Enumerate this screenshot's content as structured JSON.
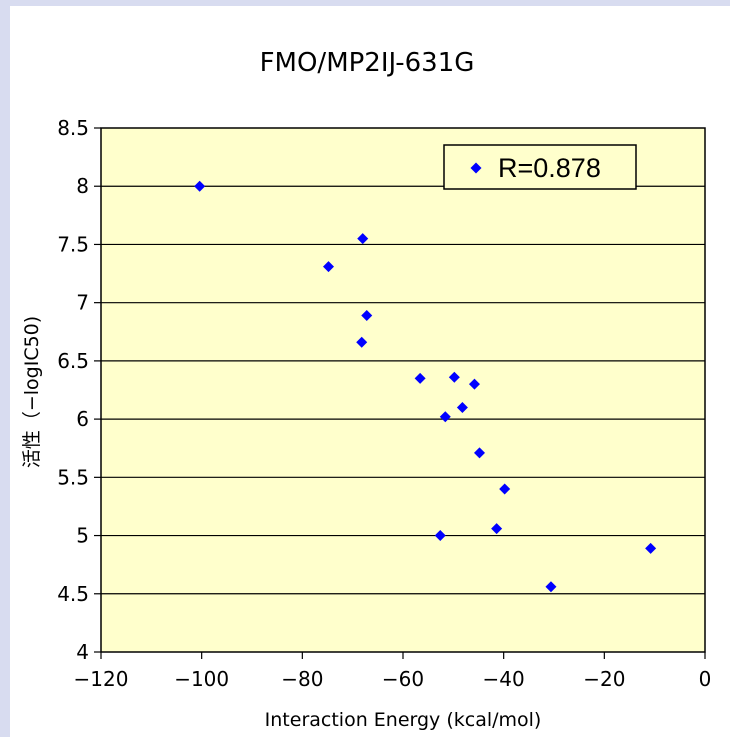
{
  "chart_data": {
    "type": "scatter",
    "title": "FMO/MP2IJ-631G",
    "xlabel": "Interaction Energy (kcal/mol)",
    "ylabel": "活性（−logIC50)",
    "xlim": [
      -120,
      0
    ],
    "ylim": [
      4,
      8.5
    ],
    "x_ticks": [
      "−120",
      "−100",
      "−80",
      "−60",
      "−40",
      "−20",
      "0"
    ],
    "y_ticks": [
      "4",
      "4.5",
      "5",
      "5.5",
      "6",
      "6.5",
      "7",
      "7.5",
      "8",
      "8.5"
    ],
    "grid": "horizontal",
    "legend": "top-right",
    "series": [
      {
        "name": "R=0.878",
        "color": "#0000ff",
        "marker": "diamond",
        "points": [
          {
            "x": -100.4,
            "y": 8.0
          },
          {
            "x": -68.0,
            "y": 7.55
          },
          {
            "x": -74.8,
            "y": 7.31
          },
          {
            "x": -67.2,
            "y": 6.89
          },
          {
            "x": -68.2,
            "y": 6.66
          },
          {
            "x": -56.6,
            "y": 6.35
          },
          {
            "x": -49.8,
            "y": 6.36
          },
          {
            "x": -45.8,
            "y": 6.3
          },
          {
            "x": -48.2,
            "y": 6.1
          },
          {
            "x": -51.6,
            "y": 6.02
          },
          {
            "x": -44.8,
            "y": 5.71
          },
          {
            "x": -39.8,
            "y": 5.4
          },
          {
            "x": -41.4,
            "y": 5.06
          },
          {
            "x": -52.6,
            "y": 5.0
          },
          {
            "x": -30.6,
            "y": 4.56
          },
          {
            "x": -10.8,
            "y": 4.89
          }
        ]
      }
    ]
  },
  "colors": {
    "plot_background": "#ffffcc",
    "page_background": "#d8dcf0"
  }
}
